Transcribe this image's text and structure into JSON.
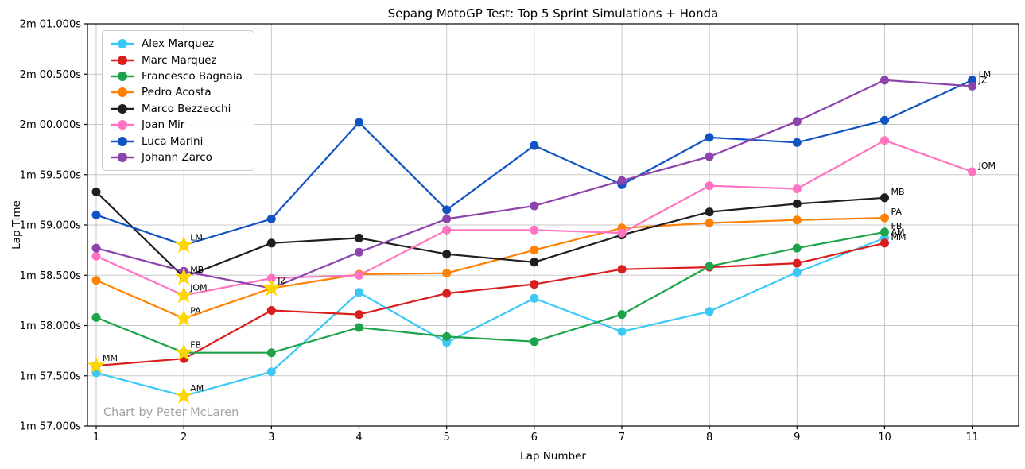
{
  "chart_data": {
    "type": "line",
    "title": "Sepang MotoGP Test: Top 5 Sprint Simulations + Honda",
    "xlabel": "Lap Number",
    "ylabel": "Lap Time",
    "annotation": "Chart by Peter McLaren",
    "grid": true,
    "legend_position": "upper left",
    "xlim": [
      0.9,
      11.53
    ],
    "ylim": [
      117.0,
      121.0
    ],
    "xticks": [
      {
        "value": 1,
        "label": "1"
      },
      {
        "value": 2,
        "label": "2"
      },
      {
        "value": 3,
        "label": "3"
      },
      {
        "value": 4,
        "label": "4"
      },
      {
        "value": 5,
        "label": "5"
      },
      {
        "value": 6,
        "label": "6"
      },
      {
        "value": 7,
        "label": "7"
      },
      {
        "value": 8,
        "label": "8"
      },
      {
        "value": 9,
        "label": "9"
      },
      {
        "value": 10,
        "label": "10"
      },
      {
        "value": 11,
        "label": "11"
      }
    ],
    "yticks": [
      {
        "value": 121.0,
        "label": "2m 01.000s"
      },
      {
        "value": 120.5,
        "label": "2m 00.500s"
      },
      {
        "value": 120.0,
        "label": "2m 00.000s"
      },
      {
        "value": 119.5,
        "label": "1m 59.500s"
      },
      {
        "value": 119.0,
        "label": "1m 59.000s"
      },
      {
        "value": 118.5,
        "label": "1m 58.500s"
      },
      {
        "value": 118.0,
        "label": "1m 58.000s"
      },
      {
        "value": 117.5,
        "label": "1m 57.500s"
      },
      {
        "value": 117.0,
        "label": "1m 57.000s"
      }
    ],
    "grid_color": "#c8c8c8",
    "star_color": "#FFD700",
    "series": [
      {
        "name": "Alex Marquez",
        "abbr": "AM",
        "color": "#3CC8F5",
        "laps": [
          1,
          2,
          3,
          4,
          5,
          6,
          7,
          8,
          9,
          10
        ],
        "values": [
          117.53,
          117.3,
          117.54,
          118.33,
          117.83,
          118.27,
          117.94,
          118.14,
          118.53,
          118.87
        ],
        "best_lap": 2
      },
      {
        "name": "Marc Marquez",
        "abbr": "MM",
        "color": "#D91E1E",
        "laps": [
          1,
          2,
          3,
          4,
          5,
          6,
          7,
          8,
          9,
          10
        ],
        "values": [
          117.6,
          117.67,
          118.15,
          118.11,
          118.32,
          118.41,
          118.56,
          118.58,
          118.62,
          118.82
        ],
        "best_lap": 1
      },
      {
        "name": "Francesco Bagnaia",
        "abbr": "FB",
        "color": "#1DA44A",
        "laps": [
          1,
          2,
          3,
          4,
          5,
          6,
          7,
          8,
          9,
          10
        ],
        "values": [
          118.08,
          117.73,
          117.73,
          117.98,
          117.89,
          117.84,
          118.11,
          118.59,
          118.77,
          118.93
        ],
        "best_lap": 2
      },
      {
        "name": "Pedro Acosta",
        "abbr": "PA",
        "color": "#FF8103",
        "laps": [
          1,
          2,
          3,
          4,
          5,
          6,
          7,
          8,
          9,
          10
        ],
        "values": [
          118.45,
          118.07,
          118.37,
          118.51,
          118.52,
          118.75,
          118.97,
          119.02,
          119.05,
          119.07
        ],
        "best_lap": 2
      },
      {
        "name": "Marco Bezzecchi",
        "abbr": "MB",
        "color": "#1f1f1f",
        "laps": [
          1,
          2,
          3,
          4,
          5,
          6,
          7,
          8,
          9,
          10
        ],
        "values": [
          119.33,
          118.48,
          118.82,
          118.87,
          118.71,
          118.63,
          118.9,
          119.13,
          119.21,
          119.27
        ],
        "best_lap": 2
      },
      {
        "name": "Joan Mir",
        "abbr": "JOM",
        "color": "#FF73C1",
        "laps": [
          1,
          2,
          3,
          4,
          5,
          6,
          7,
          8,
          9,
          10,
          11
        ],
        "values": [
          118.69,
          118.3,
          118.47,
          118.5,
          118.95,
          118.95,
          118.92,
          119.39,
          119.36,
          119.84,
          119.53
        ],
        "best_lap": 2
      },
      {
        "name": "Luca Marini",
        "abbr": "LM",
        "color": "#1153C2",
        "laps": [
          1,
          2,
          3,
          4,
          5,
          6,
          7,
          8,
          9,
          10,
          11
        ],
        "values": [
          119.1,
          118.8,
          119.06,
          120.02,
          119.15,
          119.79,
          119.4,
          119.87,
          119.82,
          120.04,
          120.44
        ],
        "best_lap": 2
      },
      {
        "name": "Johann Zarco",
        "abbr": "JZ",
        "color": "#8C43AC",
        "laps": [
          1,
          2,
          3,
          4,
          5,
          6,
          7,
          8,
          9,
          10,
          11
        ],
        "values": [
          118.77,
          118.54,
          118.37,
          118.73,
          119.06,
          119.19,
          119.44,
          119.68,
          120.03,
          120.44,
          120.38
        ],
        "best_lap": 3
      }
    ]
  }
}
